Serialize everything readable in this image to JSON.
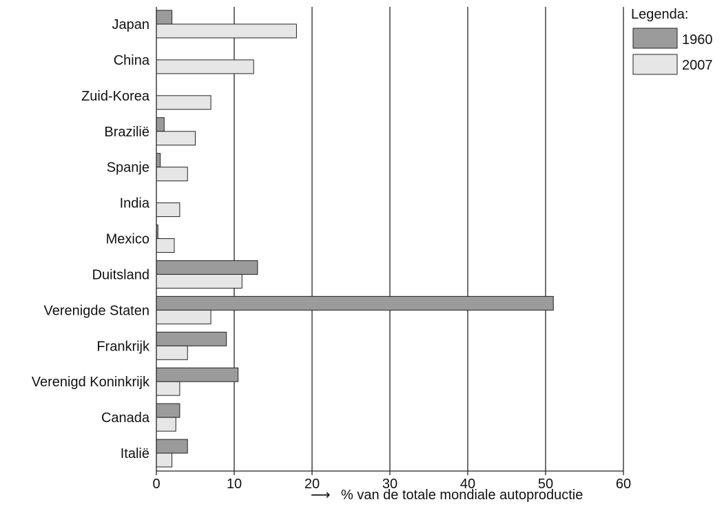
{
  "chart_data": {
    "type": "bar",
    "orientation": "horizontal",
    "categories": [
      "Japan",
      "China",
      "Zuid-Korea",
      "Brazilië",
      "Spanje",
      "India",
      "Mexico",
      "Duitsland",
      "Verenigde Staten",
      "Frankrijk",
      "Verenigd Koninkrijk",
      "Canada",
      "Italië"
    ],
    "series": [
      {
        "name": "1960",
        "color": "#9b9b9b",
        "values": [
          2,
          0,
          0,
          1,
          0.5,
          0,
          0.2,
          13,
          51,
          9,
          10.5,
          3,
          4
        ]
      },
      {
        "name": "2007",
        "color": "#e6e6e6",
        "values": [
          18,
          12.5,
          7,
          5,
          4,
          3,
          2.3,
          11,
          7,
          4,
          3,
          2.5,
          2
        ]
      }
    ],
    "xlim": [
      0,
      60
    ],
    "xticks": [
      "0",
      "10",
      "20",
      "30",
      "40",
      "50",
      "60"
    ],
    "xlabel": "% van de totale mondiale autoproductie",
    "xlabel_arrow": "⟶",
    "legend": {
      "title": "Legenda:",
      "position": "top-right"
    },
    "grid": true
  }
}
